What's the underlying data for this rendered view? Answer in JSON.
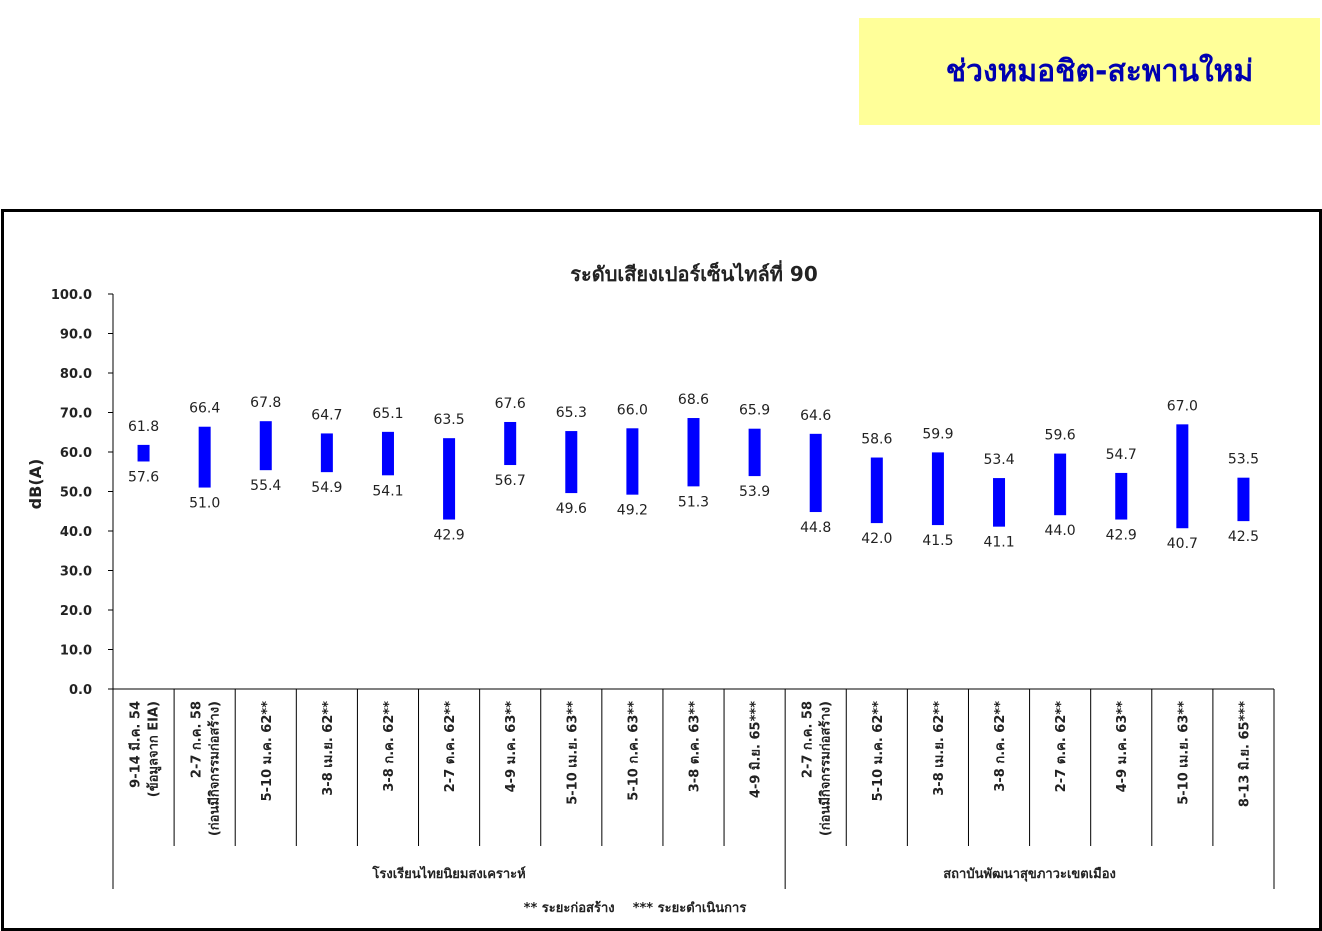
{
  "header": {
    "title": "ช่วงหมอชิต-สะพานใหม่"
  },
  "chart_data": {
    "type": "bar",
    "subtype": "floating-range",
    "title": "ระดับเสียงเปอร์เซ็นไทล์ที่ 90",
    "xlabel": "",
    "ylabel": "dB(A)",
    "ylim": [
      0,
      100
    ],
    "yticks": [
      "0.0",
      "10.0",
      "20.0",
      "30.0",
      "40.0",
      "50.0",
      "60.0",
      "70.0",
      "80.0",
      "90.0",
      "100.0"
    ],
    "grid": false,
    "bar_color": "#0000ff",
    "categories": [
      [
        "9-14 มี.ค. 54",
        "(ข้อมูลจาก EIA)"
      ],
      [
        "2-7 ก.ค. 58",
        "(ก่อนมีกิจกรรมก่อสร้าง)"
      ],
      [
        "5-10 ม.ค. 62**"
      ],
      [
        "3-8 เม.ย. 62**"
      ],
      [
        "3-8 ก.ค. 62**"
      ],
      [
        "2-7 ต.ค. 62**"
      ],
      [
        "4-9 ม.ค. 63**"
      ],
      [
        "5-10 เม.ย. 63**"
      ],
      [
        "5-10 ก.ค. 63**"
      ],
      [
        "3-8 ต.ค. 63**"
      ],
      [
        "4-9 มิ.ย. 65***"
      ],
      [
        "2-7 ก.ค. 58",
        "(ก่อนมีกิจกรรมก่อสร้าง)"
      ],
      [
        "5-10 ม.ค. 62**"
      ],
      [
        "3-8 เม.ย. 62**"
      ],
      [
        "3-8 ก.ค. 62**"
      ],
      [
        "2-7 ต.ค. 62**"
      ],
      [
        "4-9 ม.ค. 63**"
      ],
      [
        "5-10 เม.ย. 63**"
      ],
      [
        "8-13 มิ.ย. 65***"
      ]
    ],
    "high": [
      61.8,
      66.4,
      67.8,
      64.7,
      65.1,
      63.5,
      67.6,
      65.3,
      66.0,
      68.6,
      65.9,
      64.6,
      58.6,
      59.9,
      53.4,
      59.6,
      54.7,
      67.0,
      53.5
    ],
    "low": [
      57.6,
      51.0,
      55.4,
      54.9,
      54.1,
      42.9,
      56.7,
      49.6,
      49.2,
      51.3,
      53.9,
      44.8,
      42.0,
      41.5,
      41.1,
      44.0,
      42.9,
      40.7,
      42.5
    ],
    "high_labels": [
      "61.8",
      "66.4",
      "67.8",
      "64.7",
      "65.1",
      "63.5",
      "67.6",
      "65.3",
      "66.0",
      "68.6",
      "65.9",
      "64.6",
      "58.6",
      "59.9",
      "53.4",
      "59.6",
      "54.7",
      "67.0",
      "53.5"
    ],
    "low_labels": [
      "57.6",
      "51.0",
      "55.4",
      "54.9",
      "54.1",
      "42.9",
      "56.7",
      "49.6",
      "49.2",
      "51.3",
      "53.9",
      "44.8",
      "42.0",
      "41.5",
      "41.1",
      "44.0",
      "42.9",
      "40.7",
      "42.5"
    ],
    "groups": [
      {
        "name": "โรงเรียนไทยนิยมสงเคราะห์",
        "start": 0,
        "end": 10
      },
      {
        "name": "สถาบันพัฒนาสุขภาวะเขตเมือง",
        "start": 11,
        "end": 18
      }
    ],
    "footnote": "** ระยะก่อสร้าง    *** ระยะดำเนินการ"
  }
}
